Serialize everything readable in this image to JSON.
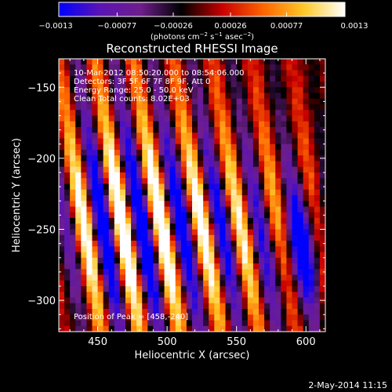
{
  "chart_data": {
    "type": "heatmap",
    "title": "Reconstructed RHESSI Image",
    "xlabel": "Heliocentric X (arcsec)",
    "ylabel": "Heliocentric Y (arcsec)",
    "xlim": [
      422,
      614
    ],
    "ylim": [
      -322,
      -130
    ],
    "xticks": [
      450,
      500,
      550,
      600
    ],
    "xtick_labels": [
      "450",
      "500",
      "550",
      "600"
    ],
    "yticks": [
      -150,
      -200,
      -250,
      -300
    ],
    "ytick_labels": [
      "−150",
      "−200",
      "−250",
      "−300"
    ],
    "colorbar": {
      "range": [
        -0.0013,
        0.0013
      ],
      "ticks": [
        -0.0013,
        -0.00077,
        -0.00026,
        0.00026,
        0.00077,
        0.0013
      ],
      "tick_labels": [
        "−0.0013",
        "−0.00077",
        "−0.00026",
        "0.00026",
        "0.00077",
        "0.0013"
      ],
      "unit_main": "(photons cm",
      "unit_exp1": "−2",
      "unit_mid": " s",
      "unit_exp2": "−1",
      "unit_mid2": " asec",
      "unit_exp3": "−2",
      "unit_end": ")",
      "colors": [
        "#0000ff",
        "#5b14b4",
        "#6e1e8c",
        "#000000",
        "#c80000",
        "#ff6400",
        "#ffc828",
        "#ffffff"
      ]
    },
    "annotations": {
      "time_range": "10-Mar-2012 08:50:20.000 to 08:54:06.000",
      "detectors": "Detectors: 3F 5F 6F 7F 8F 9F, Att 0",
      "energy": "Energy Range: 25.0 - 50.0 keV",
      "clean": "Clean    Total counts: 8.02E+03",
      "peak": "Position of Peak = [458,-240]"
    },
    "stripes": [
      {
        "x_at_top": 421,
        "x_at_bottom": 452,
        "amplitude": 0.0012
      },
      {
        "x_at_top": 448,
        "x_at_bottom": 480,
        "amplitude": 0.0013
      },
      {
        "x_at_top": 475,
        "x_at_bottom": 509,
        "amplitude": 0.0013
      },
      {
        "x_at_top": 504,
        "x_at_bottom": 539,
        "amplitude": 0.0011
      },
      {
        "x_at_top": 532,
        "x_at_bottom": 566,
        "amplitude": 0.0009
      },
      {
        "x_at_top": 561,
        "x_at_bottom": 593,
        "amplitude": 0.0007
      },
      {
        "x_at_top": 590,
        "x_at_bottom": 620,
        "amplitude": 0.0006
      }
    ]
  },
  "footer": {
    "date": "2-May-2014 11:15"
  }
}
